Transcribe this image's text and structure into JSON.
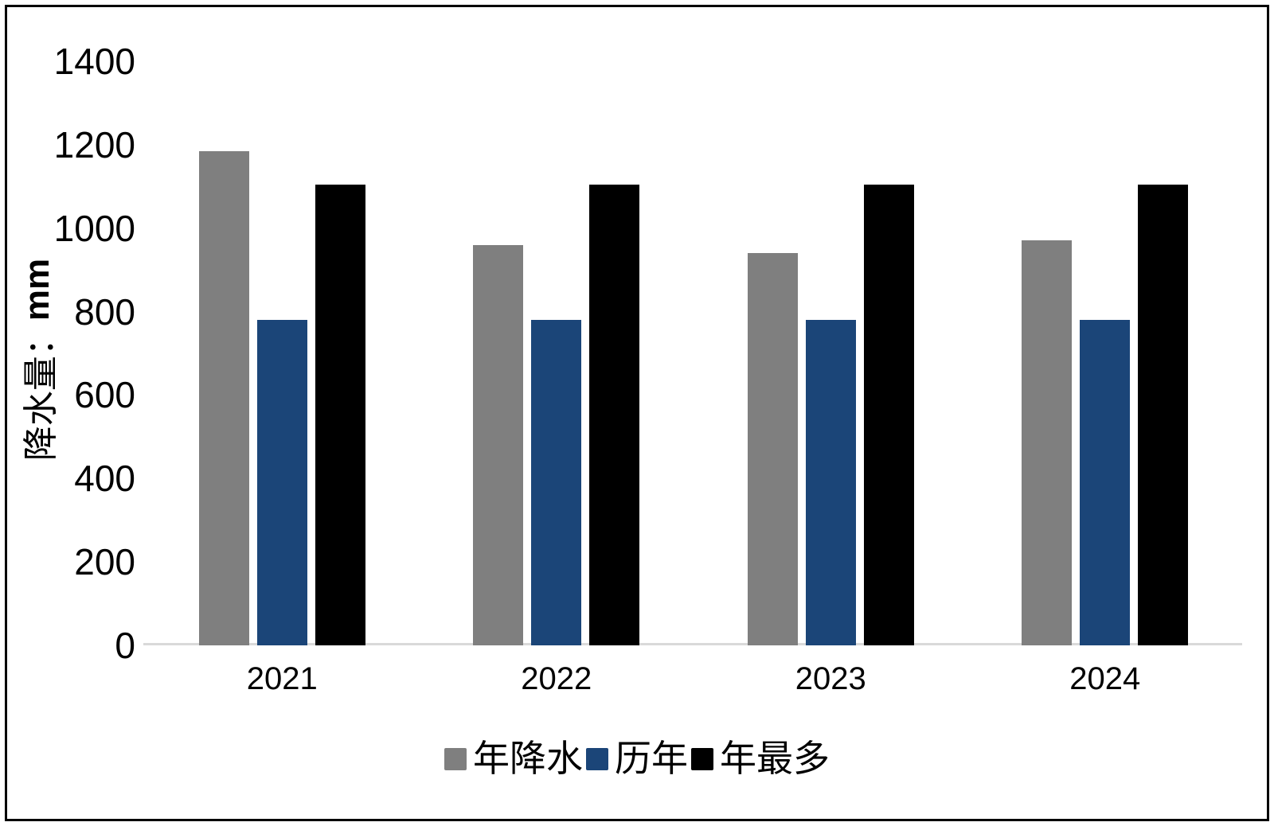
{
  "frame": {
    "border_color": "#000000",
    "background": "#FFFFFF"
  },
  "chart_data": {
    "type": "bar",
    "title": "",
    "y_axis_title_text": "降水量：",
    "y_axis_title_unit": "mm",
    "categories": [
      "2021",
      "2022",
      "2023",
      "2024"
    ],
    "series": [
      {
        "name": "年降水",
        "color": "#7F7F7F",
        "values": [
          1185,
          960,
          940,
          970
        ]
      },
      {
        "name": "历年",
        "color": "#1B4578",
        "values": [
          780,
          780,
          780,
          780
        ]
      },
      {
        "name": "年最多",
        "color": "#000000",
        "values": [
          1105,
          1105,
          1105,
          1105
        ]
      }
    ],
    "ylim": [
      0,
      1400
    ],
    "yticks": [
      0,
      200,
      400,
      600,
      800,
      1000,
      1200,
      1400
    ],
    "grid": false,
    "legend_position": "bottom",
    "axis_line_color": "#D9D9D9"
  }
}
